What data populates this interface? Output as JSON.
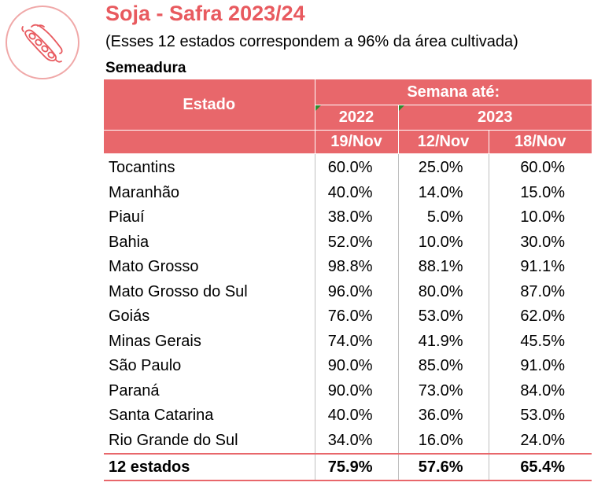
{
  "header": {
    "title": "Soja - Safra 2023/24",
    "subtitle": "(Esses 12 estados correspondem a 96% da área cultivada)",
    "section": "Semeadura"
  },
  "colors": {
    "accent": "#E85A5F",
    "header_bg": "#E8676B"
  },
  "logo": {
    "icon": "soybean-pod-icon"
  },
  "table": {
    "state_header": "Estado",
    "week_header": "Semana até:",
    "years": [
      "2022",
      "2023"
    ],
    "dates": [
      "19/Nov",
      "12/Nov",
      "18/Nov"
    ],
    "rows": [
      {
        "estado": "Tocantins",
        "v": [
          "60.0%",
          "25.0%",
          "60.0%"
        ]
      },
      {
        "estado": "Maranhão",
        "v": [
          "40.0%",
          "14.0%",
          "15.0%"
        ]
      },
      {
        "estado": "Piauí",
        "v": [
          "38.0%",
          "5.0%",
          "10.0%"
        ]
      },
      {
        "estado": "Bahia",
        "v": [
          "52.0%",
          "10.0%",
          "30.0%"
        ]
      },
      {
        "estado": "Mato Grosso",
        "v": [
          "98.8%",
          "88.1%",
          "91.1%"
        ]
      },
      {
        "estado": "Mato Grosso do Sul",
        "v": [
          "96.0%",
          "80.0%",
          "87.0%"
        ]
      },
      {
        "estado": "Goiás",
        "v": [
          "76.0%",
          "53.0%",
          "62.0%"
        ]
      },
      {
        "estado": "Minas Gerais",
        "v": [
          "74.0%",
          "41.9%",
          "45.5%"
        ]
      },
      {
        "estado": "São Paulo",
        "v": [
          "90.0%",
          "85.0%",
          "91.0%"
        ]
      },
      {
        "estado": "Paraná",
        "v": [
          "90.0%",
          "73.0%",
          "84.0%"
        ]
      },
      {
        "estado": "Santa Catarina",
        "v": [
          "40.0%",
          "36.0%",
          "53.0%"
        ]
      },
      {
        "estado": "Rio Grande do Sul",
        "v": [
          "34.0%",
          "16.0%",
          "24.0%"
        ]
      }
    ],
    "total": {
      "estado": "12 estados",
      "v": [
        "75.9%",
        "57.6%",
        "65.4%"
      ]
    }
  }
}
